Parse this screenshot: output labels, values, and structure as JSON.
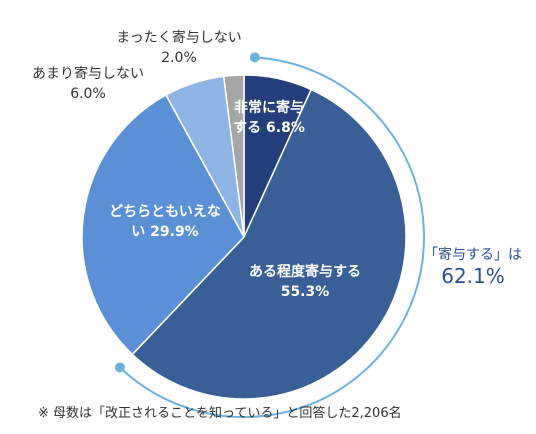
{
  "chart_data": {
    "type": "pie",
    "categories": [
      "非常に寄与する",
      "ある程度寄与する",
      "どちらともいえない",
      "あまり寄与しない",
      "まったく寄与しない"
    ],
    "values": [
      6.8,
      55.3,
      29.9,
      6.0,
      2.0
    ],
    "value_labels": [
      "6.8%",
      "55.3%",
      "29.9%",
      "6.0%",
      "2.0%"
    ],
    "colors": [
      "#243f7a",
      "#3a5f96",
      "#5b8fd6",
      "#8fb4e6",
      "#a6a6a6"
    ],
    "annotation": {
      "text": "「寄与する」は",
      "value_label": "62.1%",
      "color": "#6bb3e0"
    },
    "footnote": "※ 母数は「改正されることを知っている」と回答した2,206名"
  }
}
